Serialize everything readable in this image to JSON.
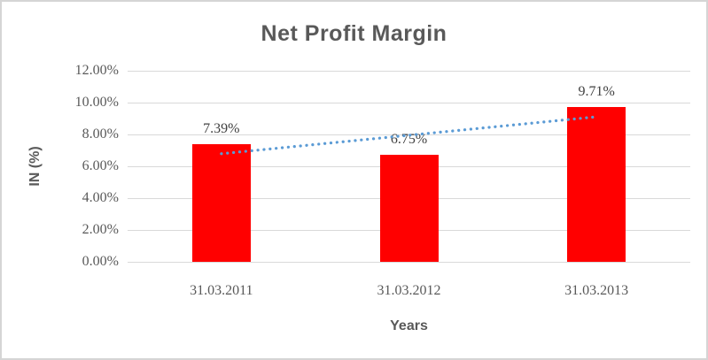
{
  "chart_data": {
    "type": "bar",
    "title": "Net Profit Margin",
    "xlabel": "Years",
    "ylabel": "IN (%)",
    "categories": [
      "31.03.2011",
      "31.03.2012",
      "31.03.2013"
    ],
    "values": [
      7.39,
      6.75,
      9.71
    ],
    "data_labels": [
      "7.39%",
      "6.75%",
      "9.71%"
    ],
    "ylim": [
      0,
      12
    ],
    "yticks": [
      0,
      2,
      4,
      6,
      8,
      10,
      12
    ],
    "ytick_labels": [
      "0.00%",
      "2.00%",
      "4.00%",
      "6.00%",
      "8.00%",
      "10.00%",
      "12.00%"
    ],
    "grid": true,
    "legend": false,
    "trendline": {
      "type": "linear",
      "style": "dotted"
    },
    "colors": {
      "bar": "#FF0000",
      "trendline": "#5B9BD5",
      "title_text": "#595959",
      "axis_title_text": "#595959",
      "tick_text": "#595959",
      "data_label_text": "#404040",
      "gridline": "#D9D9D9",
      "chart_border": "#D5D5D5",
      "background": "#FFFFFF"
    }
  }
}
